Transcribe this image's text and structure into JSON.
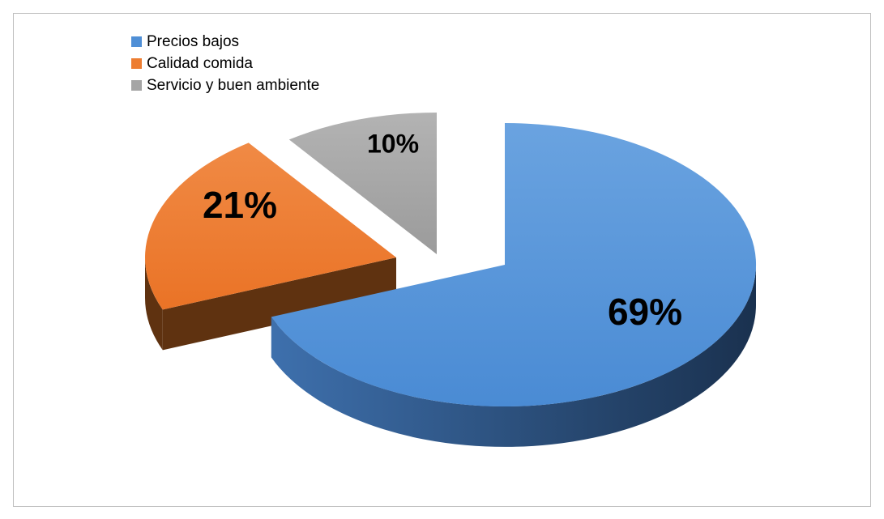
{
  "chart_data": {
    "type": "pie",
    "variant": "3d-exploded",
    "title": "",
    "legend_position": "top-left",
    "slices": [
      {
        "name": "Precios bajos",
        "value": 69,
        "label": "69%",
        "color": "#4f8fd6"
      },
      {
        "name": "Calidad comida",
        "value": 21,
        "label": "21%",
        "color": "#ed7d31"
      },
      {
        "name": "Servicio y buen ambiente",
        "value": 10,
        "label": "10%",
        "color": "#a5a5a5"
      }
    ]
  }
}
